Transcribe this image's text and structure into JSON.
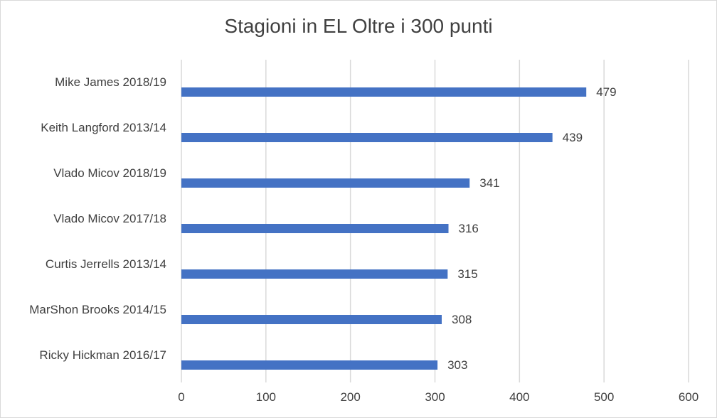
{
  "chart_data": {
    "type": "bar",
    "orientation": "horizontal",
    "title": "Stagioni in EL Oltre i 300 punti",
    "categories": [
      "Mike James 2018/19",
      "Keith Langford 2013/14",
      "Vlado Micov 2018/19",
      "Vlado Micov 2017/18",
      "Curtis Jerrells 2013/14",
      "MarShon Brooks 2014/15",
      "Ricky Hickman 2016/17"
    ],
    "values": [
      479,
      439,
      341,
      316,
      315,
      308,
      303
    ],
    "data_labels": [
      "479",
      "439",
      "341",
      "316",
      "315",
      "308",
      "303"
    ],
    "xlim": [
      0,
      600
    ],
    "xticks": [
      0,
      100,
      200,
      300,
      400,
      500,
      600
    ],
    "xtick_labels": [
      "0",
      "100",
      "200",
      "300",
      "400",
      "500",
      "600"
    ],
    "grid": "vertical",
    "legend": "none",
    "bar_color": "#4472c4"
  }
}
